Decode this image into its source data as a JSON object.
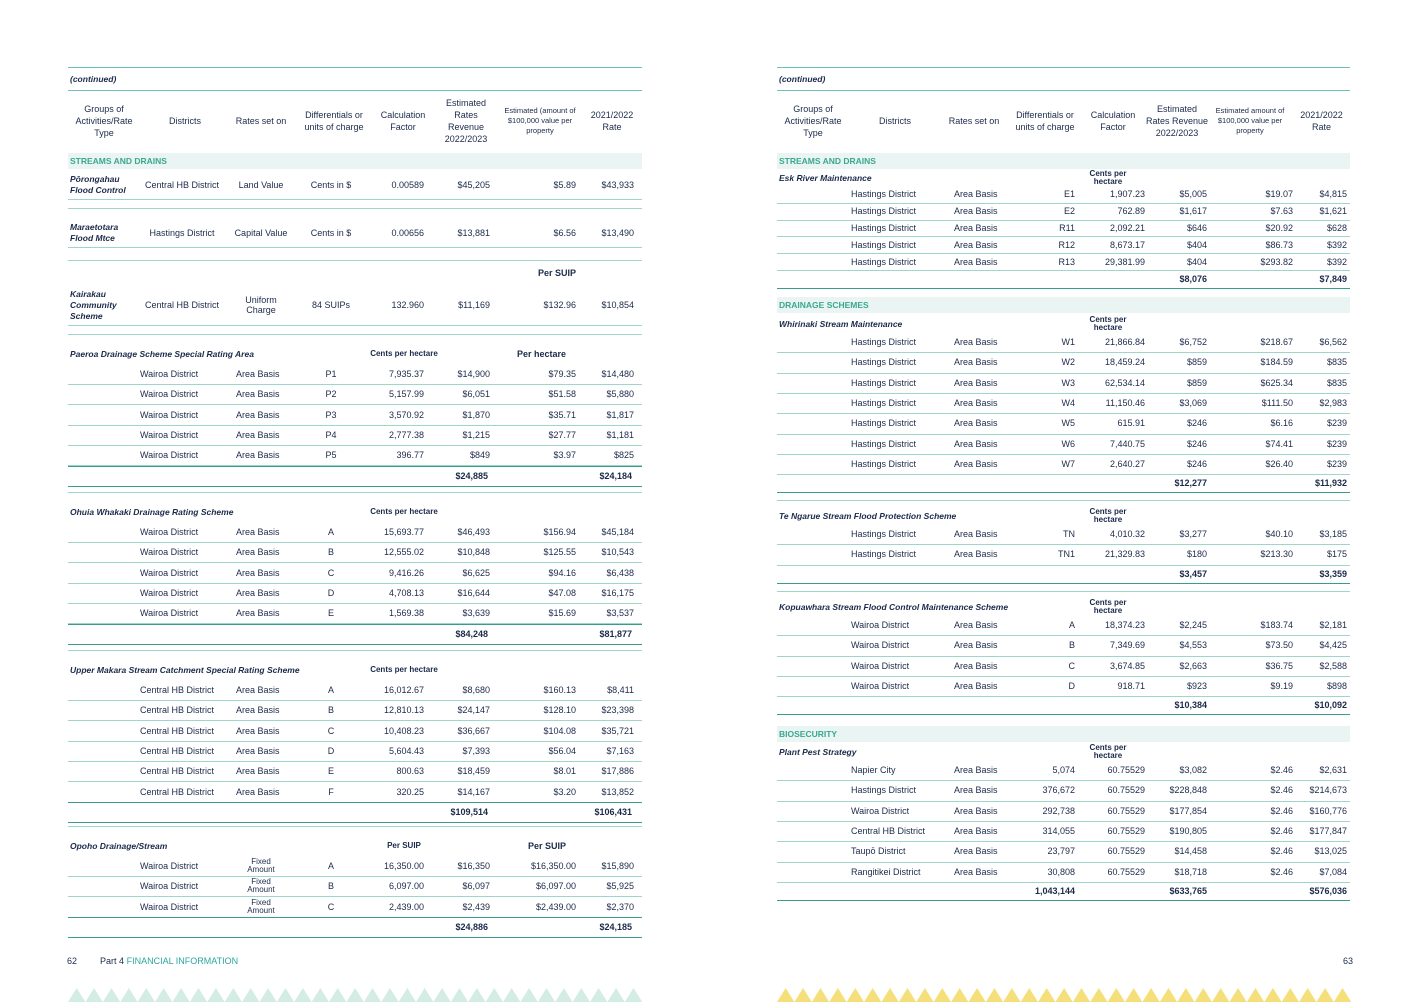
{
  "footer": {
    "left_num": "62",
    "part": "Part 4",
    "section": "FINANCIAL INFORMATION",
    "right_num": "63"
  },
  "left": {
    "continued": "(continued)",
    "headers": [
      "Groups of Activities/Rate Type",
      "Districts",
      "Rates set on",
      "Differentials or units of charge",
      "Calculation Factor",
      "Estimated Rates Revenue 2022/2023",
      "Estimated (amount of $100,000 value per property",
      "2021/2022 Rate"
    ],
    "section": "STREAMS AND DRAINS",
    "rows_a": [
      {
        "group": "Pōrongahau Flood Control",
        "district": "Central HB District",
        "set_on": "Land Value",
        "units": "Cents in $",
        "factor": "0.00589",
        "revenue": "$45,205",
        "est": "$5.89",
        "rate": "$43,933"
      },
      {
        "group": "Maraetotara Flood Mtce",
        "district": "Hastings District",
        "set_on": "Capital Value",
        "units": "Cents in $",
        "factor": "0.00656",
        "revenue": "$13,881",
        "est": "$6.56",
        "rate": "$13,490"
      },
      {
        "group": "Kairakau Community Scheme",
        "district": "Central HB District",
        "set_on": "Uniform Charge",
        "units": "84 SUIPs",
        "factor": "132.960",
        "revenue": "$11,169",
        "est": "$132.96",
        "rate": "$10,854",
        "est_head": "Per SUIP"
      }
    ],
    "schemes": [
      {
        "title": "Paeroa Drainage Scheme Special Rating Area",
        "factor_head": "Cents per hectare",
        "est_head": "Per hectare",
        "rows": [
          [
            "Wairoa District",
            "Area Basis",
            "P1",
            "7,935.37",
            "$14,900",
            "$79.35",
            "$14,480"
          ],
          [
            "Wairoa District",
            "Area Basis",
            "P2",
            "5,157.99",
            "$6,051",
            "$51.58",
            "$5,880"
          ],
          [
            "Wairoa District",
            "Area Basis",
            "P3",
            "3,570.92",
            "$1,870",
            "$35.71",
            "$1,817"
          ],
          [
            "Wairoa District",
            "Area Basis",
            "P4",
            "2,777.38",
            "$1,215",
            "$27.77",
            "$1,181"
          ],
          [
            "Wairoa District",
            "Area Basis",
            "P5",
            "396.77",
            "$849",
            "$3.97",
            "$825"
          ]
        ],
        "total_rev": "$24,885",
        "total_rate": "$24,184"
      },
      {
        "title": "Ohuia Whakaki Drainage Rating Scheme",
        "factor_head": "Cents per hectare",
        "est_head": "",
        "rows": [
          [
            "Wairoa District",
            "Area Basis",
            "A",
            "15,693.77",
            "$46,493",
            "$156.94",
            "$45,184"
          ],
          [
            "Wairoa District",
            "Area Basis",
            "B",
            "12,555.02",
            "$10,848",
            "$125.55",
            "$10,543"
          ],
          [
            "Wairoa District",
            "Area Basis",
            "C",
            "9,416.26",
            "$6,625",
            "$94.16",
            "$6,438"
          ],
          [
            "Wairoa District",
            "Area Basis",
            "D",
            "4,708.13",
            "$16,644",
            "$47.08",
            "$16,175"
          ],
          [
            "Wairoa District",
            "Area Basis",
            "E",
            "1,569.38",
            "$3,639",
            "$15.69",
            "$3,537"
          ]
        ],
        "total_rev": "$84,248",
        "total_rate": "$81,877"
      },
      {
        "title": "Upper Makara Stream Catchment Special Rating Scheme",
        "factor_head": "Cents per hectare",
        "est_head": "",
        "rows": [
          [
            "Central HB District",
            "Area Basis",
            "A",
            "16,012.67",
            "$8,680",
            "$160.13",
            "$8,411"
          ],
          [
            "Central HB District",
            "Area Basis",
            "B",
            "12,810.13",
            "$24,147",
            "$128.10",
            "$23,398"
          ],
          [
            "Central HB District",
            "Area Basis",
            "C",
            "10,408.23",
            "$36,667",
            "$104.08",
            "$35,721"
          ],
          [
            "Central HB District",
            "Area Basis",
            "D",
            "5,604.43",
            "$7,393",
            "$56.04",
            "$7,163"
          ],
          [
            "Central HB District",
            "Area Basis",
            "E",
            "800.63",
            "$18,459",
            "$8.01",
            "$17,886"
          ],
          [
            "Central HB District",
            "Area Basis",
            "F",
            "320.25",
            "$14,167",
            "$3.20",
            "$13,852"
          ]
        ],
        "total_rev": "$109,514",
        "total_rate": "$106,431"
      },
      {
        "title": "Opoho Drainage/Stream",
        "factor_head": "Per SUIP",
        "est_head": "Per SUIP",
        "rows": [
          [
            "Wairoa District",
            "Fixed Amount",
            "A",
            "16,350.00",
            "$16,350",
            "$16,350.00",
            "$15,890"
          ],
          [
            "Wairoa District",
            "Fixed Amount",
            "B",
            "6,097.00",
            "$6,097",
            "$6,097.00",
            "$5,925"
          ],
          [
            "Wairoa District",
            "Fixed Amount",
            "C",
            "2,439.00",
            "$2,439",
            "$2,439.00",
            "$2,370"
          ]
        ],
        "total_rev": "$24,886",
        "total_rate": "$24,185"
      }
    ]
  },
  "right": {
    "continued": "(continued)",
    "headers": [
      "Groups of Activities/Rate Type",
      "Districts",
      "Rates set on",
      "Differentials or units of charge",
      "Calculation Factor",
      "Estimated Rates Revenue 2022/2023",
      "Estimated amount of $100,000 value per property",
      "2021/2022 Rate"
    ],
    "sections": [
      {
        "name": "STREAMS AND DRAINS",
        "schemes": [
          {
            "title": "Esk River Maintenance",
            "factor_head": "Cents per hectare",
            "rows": [
              [
                "Hastings District",
                "Area Basis",
                "E1",
                "1,907.23",
                "$5,005",
                "$19.07",
                "$4,815"
              ],
              [
                "Hastings District",
                "Area Basis",
                "E2",
                "762.89",
                "$1,617",
                "$7.63",
                "$1,621"
              ],
              [
                "Hastings District",
                "Area Basis",
                "R11",
                "2,092.21",
                "$646",
                "$20.92",
                "$628"
              ],
              [
                "Hastings District",
                "Area Basis",
                "R12",
                "8,673.17",
                "$404",
                "$86.73",
                "$392"
              ],
              [
                "Hastings District",
                "Area Basis",
                "R13",
                "29,381.99",
                "$404",
                "$293.82",
                "$392"
              ]
            ],
            "total_units": "",
            "total_rev": "$8,076",
            "total_rate": "$7,849"
          }
        ]
      },
      {
        "name": "DRAINAGE SCHEMES",
        "schemes": [
          {
            "title": "Whirinaki Stream Maintenance",
            "factor_head": "Cents per hectare",
            "rows": [
              [
                "Hastings District",
                "Area Basis",
                "W1",
                "21,866.84",
                "$6,752",
                "$218.67",
                "$6,562"
              ],
              [
                "Hastings District",
                "Area Basis",
                "W2",
                "18,459.24",
                "$859",
                "$184.59",
                "$835"
              ],
              [
                "Hastings District",
                "Area Basis",
                "W3",
                "62,534.14",
                "$859",
                "$625.34",
                "$835"
              ],
              [
                "Hastings District",
                "Area Basis",
                "W4",
                "11,150.46",
                "$3,069",
                "$111.50",
                "$2,983"
              ],
              [
                "Hastings District",
                "Area Basis",
                "W5",
                "615.91",
                "$246",
                "$6.16",
                "$239"
              ],
              [
                "Hastings District",
                "Area Basis",
                "W6",
                "7,440.75",
                "$246",
                "$74.41",
                "$239"
              ],
              [
                "Hastings District",
                "Area Basis",
                "W7",
                "2,640.27",
                "$246",
                "$26.40",
                "$239"
              ]
            ],
            "total_units": "",
            "total_rev": "$12,277",
            "total_rate": "$11,932"
          },
          {
            "title": "Te Ngarue Stream Flood Protection Scheme",
            "factor_head": "Cents per hectare",
            "rows": [
              [
                "Hastings District",
                "Area Basis",
                "TN",
                "4,010.32",
                "$3,277",
                "$40.10",
                "$3,185"
              ],
              [
                "Hastings District",
                "Area Basis",
                "TN1",
                "21,329.83",
                "$180",
                "$213.30",
                "$175"
              ]
            ],
            "total_units": "",
            "total_rev": "$3,457",
            "total_rate": "$3,359"
          },
          {
            "title": "Kopuawhara Stream Flood Control Maintenance Scheme",
            "factor_head": "Cents per hectare",
            "rows": [
              [
                "Wairoa District",
                "Area Basis",
                "A",
                "18,374.23",
                "$2,245",
                "$183.74",
                "$2,181"
              ],
              [
                "Wairoa District",
                "Area Basis",
                "B",
                "7,349.69",
                "$4,553",
                "$73.50",
                "$4,425"
              ],
              [
                "Wairoa District",
                "Area Basis",
                "C",
                "3,674.85",
                "$2,663",
                "$36.75",
                "$2,588"
              ],
              [
                "Wairoa District",
                "Area Basis",
                "D",
                "918.71",
                "$923",
                "$9.19",
                "$898"
              ]
            ],
            "total_units": "",
            "total_rev": "$10,384",
            "total_rate": "$10,092"
          }
        ]
      },
      {
        "name": "BIOSECURITY",
        "schemes": [
          {
            "title": "Plant Pest Strategy",
            "factor_head": "Cents per hectare",
            "rows": [
              [
                "Napier City",
                "Area Basis",
                "5,074",
                "60.75529",
                "$3,082",
                "$2.46",
                "$2,631"
              ],
              [
                "Hastings District",
                "Area Basis",
                "376,672",
                "60.75529",
                "$228,848",
                "$2.46",
                "$214,673"
              ],
              [
                "Wairoa District",
                "Area Basis",
                "292,738",
                "60.75529",
                "$177,854",
                "$2.46",
                "$160,776"
              ],
              [
                "Central HB District",
                "Area Basis",
                "314,055",
                "60.75529",
                "$190,805",
                "$2.46",
                "$177,847"
              ],
              [
                "Taupō District",
                "Area Basis",
                "23,797",
                "60.75529",
                "$14,458",
                "$2.46",
                "$13,025"
              ],
              [
                "Rangitikei District",
                "Area Basis",
                "30,808",
                "60.75529",
                "$18,718",
                "$2.46",
                "$7,084"
              ]
            ],
            "total_units": "1,043,144",
            "total_rev": "$633,765",
            "total_rate": "$576,036"
          }
        ]
      }
    ]
  }
}
